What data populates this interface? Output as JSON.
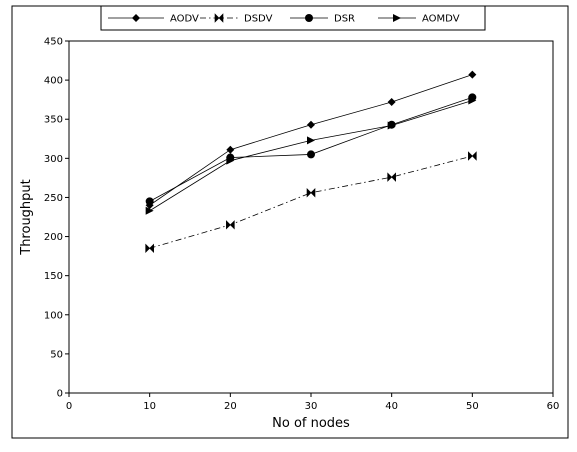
{
  "chart_data": {
    "type": "line",
    "title": "",
    "xlabel": "No of nodes",
    "ylabel": "Throughput",
    "xlim": [
      0,
      60
    ],
    "ylim": [
      0,
      450
    ],
    "xticks": [
      0,
      10,
      20,
      30,
      40,
      50,
      60
    ],
    "yticks": [
      0,
      50,
      100,
      150,
      200,
      250,
      300,
      350,
      400,
      450
    ],
    "x": [
      10,
      20,
      30,
      40,
      50
    ],
    "grid": false,
    "legend_position": "top",
    "series": [
      {
        "name": "AODV",
        "marker": "diamond",
        "line_style": "solid",
        "color": "#000000",
        "values": [
          240,
          311,
          343,
          372,
          407
        ]
      },
      {
        "name": "DSDV",
        "marker": "bowtie",
        "line_style": "dashdot",
        "color": "#000000",
        "values": [
          185,
          215,
          256,
          276,
          303
        ]
      },
      {
        "name": "DSR",
        "marker": "circle",
        "line_style": "solid",
        "color": "#000000",
        "values": [
          245,
          301,
          305,
          343,
          378
        ]
      },
      {
        "name": "AOMDV",
        "marker": "triangle-right",
        "line_style": "solid",
        "color": "#000000",
        "values": [
          233,
          297,
          323,
          342,
          374
        ]
      }
    ]
  }
}
